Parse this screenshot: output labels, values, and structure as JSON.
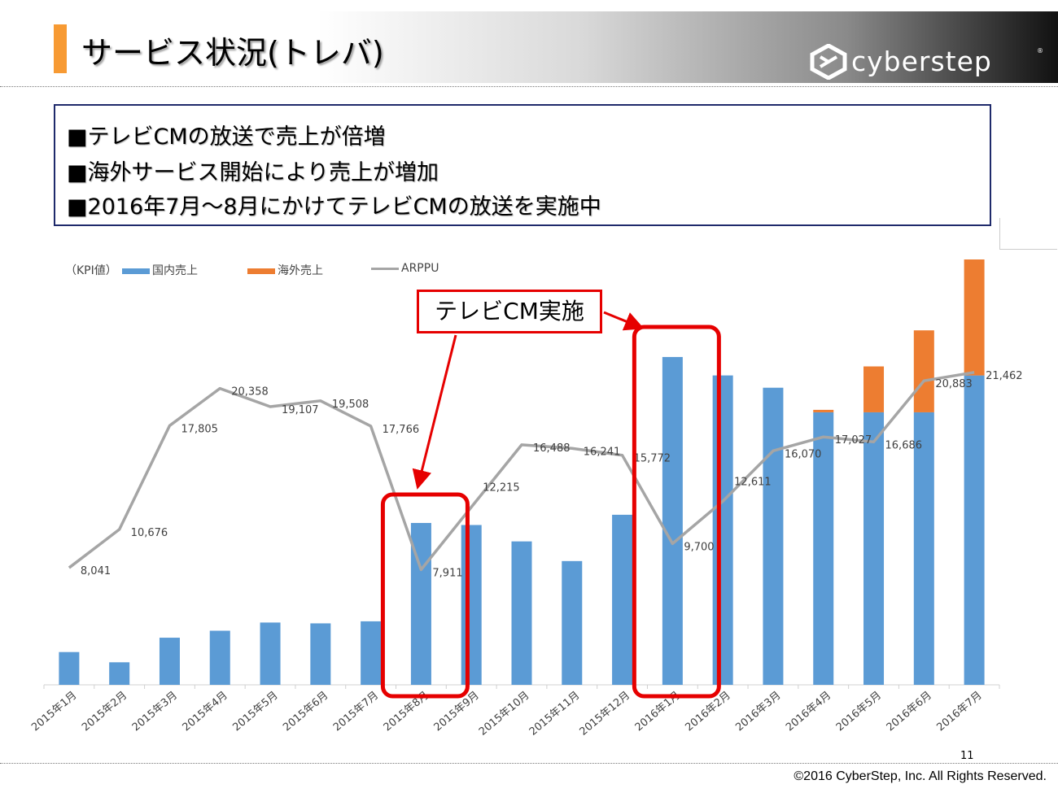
{
  "header": {
    "title": "サービス状況(トレバ)"
  },
  "logo": {
    "text": "cyberstep",
    "reg": "®"
  },
  "summary": {
    "bullets": [
      "■テレビCMの放送で売上が倍増",
      "■海外サービス開始により売上が増加",
      "■2016年7月～8月にかけてテレビCMの放送を実施中"
    ]
  },
  "chart_data": {
    "type": "bar",
    "unit_label": "（KPI値）",
    "categories": [
      "2015年1月",
      "2015年2月",
      "2015年3月",
      "2015年4月",
      "2015年5月",
      "2015年6月",
      "2015年7月",
      "2015年8月",
      "2015年9月",
      "2015年10月",
      "2015年11月",
      "2015年12月",
      "2016年1月",
      "2016年2月",
      "2016年3月",
      "2016年4月",
      "2016年5月",
      "2016年6月",
      "2016年7月"
    ],
    "series": [
      {
        "name": "国内売上",
        "kind": "bar",
        "color": "#5b9bd5",
        "values": [
          8,
          5.5,
          11.5,
          13.2,
          15.2,
          15,
          15.5,
          39.5,
          39,
          35,
          30.2,
          41.5,
          80,
          75.5,
          72.5,
          66.5,
          66.5,
          66.5,
          75.5
        ]
      },
      {
        "name": "海外売上",
        "kind": "bar",
        "color": "#ed7d31",
        "values": [
          0,
          0,
          0,
          0,
          0,
          0,
          0,
          0,
          0,
          0,
          0,
          0,
          0,
          0,
          0,
          0.6,
          11.2,
          20,
          28.3
        ]
      },
      {
        "name": "ARPPU",
        "kind": "line",
        "color": "#a5a5a5",
        "values": [
          8041,
          10676,
          17805,
          20358,
          19107,
          19508,
          17766,
          7911,
          12215,
          16488,
          16241,
          15772,
          9700,
          12611,
          16070,
          17027,
          16686,
          20883,
          21462
        ],
        "labels": [
          "8,041",
          "10,676",
          "17,805",
          "20,358",
          "19,107",
          "19,508",
          "17,766",
          "7,911",
          "12,215",
          "16,488",
          "16,241",
          "15,772",
          "9,700",
          "12,611",
          "16,070",
          "17,027",
          "16,686",
          "20,883",
          "21,462"
        ]
      }
    ],
    "bar_scale": [
      0,
      104
    ],
    "line_scale": [
      0,
      30000
    ],
    "grid": false,
    "legend": "top-left",
    "highlight_indices": [
      7,
      12
    ],
    "highlight_color": "#e60000"
  },
  "callout": {
    "text": "テレビCM実施"
  },
  "footer": {
    "page_number": "11",
    "copyright": "©2016 CyberStep, Inc. All Rights Reserved."
  }
}
